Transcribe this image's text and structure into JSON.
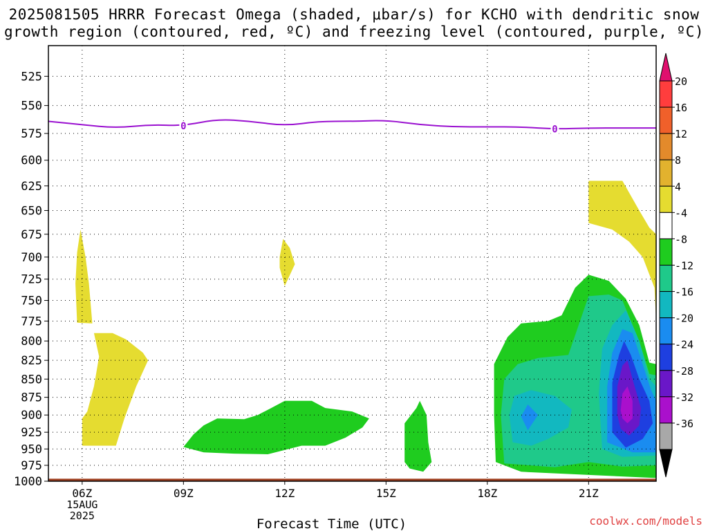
{
  "title_line1": "2025081505 HRRR Forecast Omega (shaded, μbar/s) for KCHO with dendritic snow",
  "title_line2": "growth region (contoured, red, ºC) and freezing level (contoured, purple, ºC)",
  "credit": "coolwx.com/models",
  "chart_data": {
    "type": "time-height cross section",
    "xlabel": "Forecast Time (UTC)",
    "x_ticks": [
      {
        "label": "06Z",
        "hour": 6
      },
      {
        "label": "09Z",
        "hour": 9
      },
      {
        "label": "12Z",
        "hour": 12
      },
      {
        "label": "15Z",
        "hour": 15
      },
      {
        "label": "18Z",
        "hour": 18
      },
      {
        "label": "21Z",
        "hour": 21
      }
    ],
    "date_label": [
      "15AUG",
      "2025"
    ],
    "xlim_hours": [
      5,
      23
    ],
    "y_ticks": [
      525,
      550,
      575,
      600,
      625,
      650,
      675,
      700,
      725,
      750,
      775,
      800,
      825,
      850,
      875,
      900,
      925,
      950,
      975,
      1000
    ],
    "ylim_mb": [
      500,
      1000
    ],
    "grid": true,
    "colorbar": {
      "labels": [
        "20",
        "16",
        "12",
        "8",
        "4",
        "-4",
        "-8",
        "-12",
        "-16",
        "-20",
        "-24",
        "-28",
        "-32",
        "-36"
      ],
      "colors": [
        "#ff3d3d",
        "#f0602a",
        "#e38a2b",
        "#e2b22e",
        "#e5dc30",
        "#ffffff",
        "#1fcc1f",
        "#1fc98a",
        "#12b8c0",
        "#1a8cf0",
        "#1e3fe0",
        "#6a17c8",
        "#aa10cc",
        "#a8a8a8"
      ],
      "top_arrow_color": "#e0106e",
      "bottom_arrow_color": "#000000"
    },
    "freezing_level_label": "0",
    "freezing_level": [
      {
        "hour": 5.0,
        "mb": 564
      },
      {
        "hour": 6.0,
        "mb": 567
      },
      {
        "hour": 7.0,
        "mb": 570
      },
      {
        "hour": 8.0,
        "mb": 567
      },
      {
        "hour": 9.0,
        "mb": 568
      },
      {
        "hour": 10.0,
        "mb": 562
      },
      {
        "hour": 11.0,
        "mb": 564
      },
      {
        "hour": 12.0,
        "mb": 568
      },
      {
        "hour": 13.0,
        "mb": 564
      },
      {
        "hour": 14.0,
        "mb": 564
      },
      {
        "hour": 15.0,
        "mb": 563
      },
      {
        "hour": 16.0,
        "mb": 567
      },
      {
        "hour": 17.0,
        "mb": 569
      },
      {
        "hour": 18.0,
        "mb": 569
      },
      {
        "hour": 19.0,
        "mb": 569
      },
      {
        "hour": 20.0,
        "mb": 571
      },
      {
        "hour": 21.0,
        "mb": 570
      },
      {
        "hour": 22.0,
        "mb": 570
      },
      {
        "hour": 23.0,
        "mb": 570
      }
    ],
    "freezing_level_labels_at_hour": [
      9.0,
      20.0
    ],
    "omega_regions": [
      {
        "name": "yellow-06z-upper",
        "level": "4 to 8",
        "color": "#e5dc30",
        "points": [
          [
            5.85,
            777
          ],
          [
            5.8,
            730
          ],
          [
            5.85,
            695
          ],
          [
            5.95,
            670
          ],
          [
            6.1,
            700
          ],
          [
            6.2,
            730
          ],
          [
            6.3,
            778
          ]
        ]
      },
      {
        "name": "yellow-06z-lower",
        "level": "4 to 8",
        "color": "#e5dc30",
        "points": [
          [
            6.0,
            945
          ],
          [
            6.0,
            905
          ],
          [
            6.15,
            895
          ],
          [
            6.35,
            860
          ],
          [
            6.5,
            820
          ],
          [
            6.35,
            790
          ],
          [
            6.9,
            790
          ],
          [
            7.3,
            798
          ],
          [
            7.8,
            815
          ],
          [
            7.95,
            825
          ],
          [
            7.6,
            860
          ],
          [
            7.25,
            905
          ],
          [
            7.0,
            945
          ]
        ]
      },
      {
        "name": "yellow-12z",
        "level": "4 to 8",
        "color": "#e5dc30",
        "points": [
          [
            11.85,
            712
          ],
          [
            11.85,
            700
          ],
          [
            11.95,
            680
          ],
          [
            12.15,
            690
          ],
          [
            12.3,
            708
          ],
          [
            12.0,
            733
          ]
        ]
      },
      {
        "name": "yellow-21z",
        "level": "4 to 8",
        "color": "#e5dc30",
        "points": [
          [
            21.0,
            620
          ],
          [
            22.0,
            620
          ],
          [
            22.5,
            650
          ],
          [
            22.8,
            668
          ],
          [
            23.0,
            675
          ],
          [
            23.0,
            775
          ],
          [
            22.95,
            735
          ],
          [
            22.6,
            700
          ],
          [
            22.2,
            683
          ],
          [
            21.7,
            670
          ],
          [
            21.0,
            663
          ]
        ]
      },
      {
        "name": "green-09z-15z",
        "level": "-4 to -8",
        "color": "#1fcc1f",
        "points": [
          [
            9.0,
            947
          ],
          [
            9.3,
            928
          ],
          [
            9.6,
            915
          ],
          [
            10.0,
            905
          ],
          [
            10.8,
            906
          ],
          [
            11.2,
            900
          ],
          [
            11.6,
            890
          ],
          [
            12.0,
            880
          ],
          [
            12.8,
            880
          ],
          [
            13.2,
            890
          ],
          [
            14.0,
            895
          ],
          [
            14.5,
            905
          ],
          [
            14.3,
            918
          ],
          [
            13.8,
            933
          ],
          [
            13.2,
            945
          ],
          [
            12.5,
            945
          ],
          [
            11.5,
            958
          ],
          [
            10.5,
            957
          ],
          [
            9.6,
            955
          ]
        ]
      },
      {
        "name": "green-16z",
        "level": "-4 to -8",
        "color": "#1fcc1f",
        "points": [
          [
            15.55,
            970
          ],
          [
            15.55,
            912
          ],
          [
            15.9,
            890
          ],
          [
            16.0,
            880
          ],
          [
            16.2,
            900
          ],
          [
            16.25,
            940
          ],
          [
            16.35,
            970
          ],
          [
            16.1,
            985
          ],
          [
            15.7,
            980
          ]
        ]
      },
      {
        "name": "green-18z-23z",
        "level": "-4 to -8",
        "color": "#1fcc1f",
        "points": [
          [
            18.25,
            970
          ],
          [
            18.2,
            900
          ],
          [
            18.2,
            830
          ],
          [
            18.6,
            795
          ],
          [
            19.0,
            778
          ],
          [
            19.8,
            775
          ],
          [
            20.2,
            768
          ],
          [
            20.6,
            735
          ],
          [
            21.0,
            720
          ],
          [
            21.6,
            727
          ],
          [
            22.1,
            748
          ],
          [
            22.5,
            780
          ],
          [
            22.8,
            828
          ],
          [
            23.0,
            830
          ],
          [
            23.0,
            995
          ],
          [
            21.0,
            990
          ],
          [
            19.0,
            985
          ]
        ]
      },
      {
        "name": "teal-18z-23z",
        "level": "-8 to -12",
        "color": "#1fc98a",
        "points": [
          [
            18.5,
            972
          ],
          [
            18.4,
            900
          ],
          [
            18.5,
            850
          ],
          [
            18.9,
            830
          ],
          [
            19.5,
            822
          ],
          [
            20.4,
            818
          ],
          [
            21.0,
            745
          ],
          [
            21.6,
            743
          ],
          [
            22.0,
            750
          ],
          [
            22.5,
            800
          ],
          [
            22.8,
            843
          ],
          [
            23.0,
            845
          ],
          [
            23.0,
            975
          ],
          [
            22.0,
            977
          ],
          [
            21.0,
            970
          ],
          [
            20.0,
            978
          ]
        ]
      },
      {
        "name": "cyan-18z-23z",
        "level": "-12 to -16",
        "color": "#12b8c0",
        "points": [
          [
            18.75,
            940
          ],
          [
            18.65,
            900
          ],
          [
            18.8,
            873
          ],
          [
            19.3,
            865
          ],
          [
            20.0,
            873
          ],
          [
            20.5,
            892
          ],
          [
            20.4,
            918
          ],
          [
            19.8,
            935
          ],
          [
            19.3,
            945
          ]
        ]
      },
      {
        "name": "cyan-21z-23z",
        "level": "-12 to -16",
        "color": "#12b8c0",
        "points": [
          [
            21.4,
            950
          ],
          [
            21.3,
            870
          ],
          [
            21.4,
            810
          ],
          [
            21.7,
            780
          ],
          [
            22.1,
            762
          ],
          [
            22.5,
            800
          ],
          [
            22.8,
            850
          ],
          [
            23.0,
            860
          ],
          [
            23.0,
            960
          ],
          [
            22.0,
            962
          ]
        ]
      },
      {
        "name": "blue-19z",
        "level": "-16 to -20",
        "color": "#1a8cf0",
        "points": [
          [
            19.0,
            902
          ],
          [
            19.2,
            885
          ],
          [
            19.5,
            900
          ],
          [
            19.2,
            922
          ]
        ]
      },
      {
        "name": "blue-21z-23z",
        "level": "-16 to -20",
        "color": "#1a8cf0",
        "points": [
          [
            21.55,
            940
          ],
          [
            21.55,
            860
          ],
          [
            21.7,
            815
          ],
          [
            22.0,
            785
          ],
          [
            22.3,
            790
          ],
          [
            22.6,
            830
          ],
          [
            22.85,
            865
          ],
          [
            23.0,
            880
          ],
          [
            23.0,
            955
          ],
          [
            22.3,
            955
          ]
        ]
      },
      {
        "name": "darkblue-22z",
        "level": "-20 to -24",
        "color": "#1e3fe0",
        "points": [
          [
            21.7,
            925
          ],
          [
            21.7,
            855
          ],
          [
            21.9,
            818
          ],
          [
            22.05,
            800
          ],
          [
            22.25,
            818
          ],
          [
            22.5,
            850
          ],
          [
            22.8,
            880
          ],
          [
            22.9,
            912
          ],
          [
            22.6,
            935
          ],
          [
            22.1,
            948
          ]
        ]
      },
      {
        "name": "purple-22z",
        "level": "-24 to -28",
        "color": "#6a17c8",
        "points": [
          [
            21.85,
            900
          ],
          [
            21.85,
            860
          ],
          [
            22.0,
            832
          ],
          [
            22.15,
            825
          ],
          [
            22.3,
            850
          ],
          [
            22.55,
            890
          ],
          [
            22.5,
            915
          ],
          [
            22.2,
            930
          ],
          [
            21.95,
            920
          ]
        ]
      },
      {
        "name": "magenta-22z",
        "level": "-28 to -32",
        "color": "#aa10cc",
        "points": [
          [
            21.95,
            893
          ],
          [
            22.0,
            870
          ],
          [
            22.15,
            860
          ],
          [
            22.3,
            880
          ],
          [
            22.3,
            905
          ],
          [
            22.15,
            912
          ],
          [
            22.0,
            905
          ]
        ]
      }
    ],
    "surface_band": {
      "mb_top": 996,
      "color": "#a04020"
    }
  }
}
